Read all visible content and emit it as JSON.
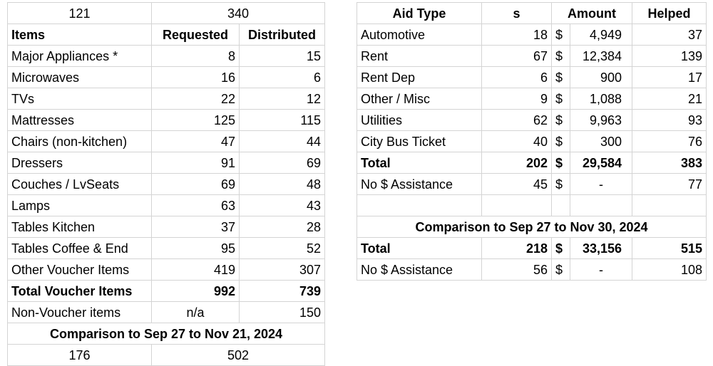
{
  "left": {
    "top_row": [
      "121",
      "340"
    ],
    "headers": [
      "Items",
      "Requested",
      "Distributed"
    ],
    "rows": [
      {
        "item": "Major Appliances *",
        "requested": "8",
        "distributed": "15"
      },
      {
        "item": "Microwaves",
        "requested": "16",
        "distributed": "6"
      },
      {
        "item": "TVs",
        "requested": "22",
        "distributed": "12"
      },
      {
        "item": "Mattresses",
        "requested": "125",
        "distributed": "115"
      },
      {
        "item": "Chairs (non-kitchen)",
        "requested": "47",
        "distributed": "44"
      },
      {
        "item": "Dressers",
        "requested": "91",
        "distributed": "69"
      },
      {
        "item": "Couches / LvSeats",
        "requested": "69",
        "distributed": "48"
      },
      {
        "item": "Lamps",
        "requested": "63",
        "distributed": "43"
      },
      {
        "item": "Tables Kitchen",
        "requested": "37",
        "distributed": "28"
      },
      {
        "item": "Tables Coffee & End",
        "requested": "95",
        "distributed": "52"
      },
      {
        "item": "Other Voucher Items",
        "requested": "419",
        "distributed": "307"
      }
    ],
    "total": {
      "item": "Total Voucher Items",
      "requested": "992",
      "distributed": "739"
    },
    "non_voucher": {
      "item": "Non-Voucher items",
      "requested": "n/a",
      "distributed": "150"
    },
    "comparison_title": "Comparison to Sep 27 to Nov 21, 2024",
    "comparison_row": [
      "176",
      "502"
    ]
  },
  "right": {
    "headers": [
      "Aid Type",
      "s",
      "Amount",
      "Helped"
    ],
    "rows": [
      {
        "type": "Automotive",
        "s": "18",
        "currency": "$",
        "amount": "4,949",
        "helped": "37"
      },
      {
        "type": "Rent",
        "s": "67",
        "currency": "$",
        "amount": "12,384",
        "helped": "139"
      },
      {
        "type": "Rent Dep",
        "s": "6",
        "currency": "$",
        "amount": "900",
        "helped": "17"
      },
      {
        "type": "Other / Misc",
        "s": "9",
        "currency": "$",
        "amount": "1,088",
        "helped": "21"
      },
      {
        "type": "Utilities",
        "s": "62",
        "currency": "$",
        "amount": "9,963",
        "helped": "93"
      },
      {
        "type": "City Bus Ticket",
        "s": "40",
        "currency": "$",
        "amount": "300",
        "helped": "76"
      }
    ],
    "total": {
      "type": "Total",
      "s": "202",
      "currency": "$",
      "amount": "29,584",
      "helped": "383"
    },
    "no_assist": {
      "type": "No $ Assistance",
      "s": "45",
      "currency": "$",
      "amount": "-",
      "helped": "77"
    },
    "comparison_title": "Comparison  to Sep 27 to Nov 30, 2024",
    "comparison_total": {
      "type": "Total",
      "s": "218",
      "currency": "$",
      "amount": "33,156",
      "helped": "515"
    },
    "comparison_no_assist": {
      "type": "No $ Assistance",
      "s": "56",
      "currency": "$",
      "amount": "-",
      "helped": "108"
    }
  }
}
